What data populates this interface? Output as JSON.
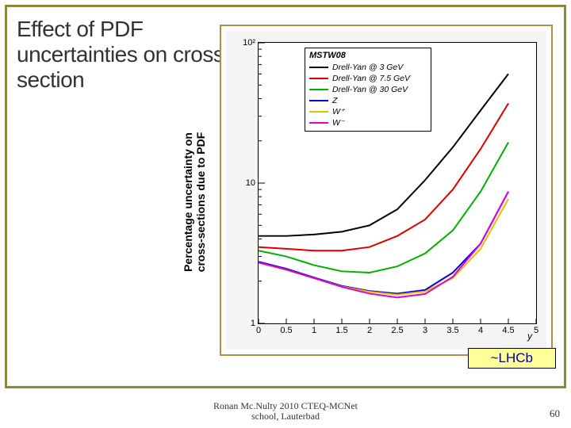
{
  "title": "Effect of PDF uncertainties on cross-section",
  "ylabel_line1": "Percentage uncertainty on",
  "ylabel_line2": "cross-sections due to PDF",
  "chart": {
    "type": "line",
    "xlim": [
      0,
      5
    ],
    "ylim": [
      1,
      100
    ],
    "yscale": "log",
    "xticks": [
      0,
      0.5,
      1,
      1.5,
      2,
      2.5,
      3,
      3.5,
      4,
      4.5,
      5
    ],
    "yticks_major": [
      1,
      10,
      100
    ],
    "ytick_labels": [
      "1",
      "10",
      "10²"
    ],
    "xlabel": "y",
    "background_color": "#f4f4f4",
    "plot_bg": "#ffffff",
    "border_color": "#b09040",
    "grid_color": "#ffffff",
    "legend": {
      "title": "MSTW08",
      "items": [
        {
          "label": "Drell-Yan @ 3 GeV",
          "color": "#000000"
        },
        {
          "label": "Drell-Yan @ 7.5 GeV",
          "color": "#e00000"
        },
        {
          "label": "Drell-Yan @ 30 GeV",
          "color": "#00b000"
        },
        {
          "label": "Z",
          "color": "#0000e0"
        },
        {
          "label": "W⁺",
          "color": "#e0c000"
        },
        {
          "label": "W⁻",
          "color": "#e000d0"
        }
      ]
    },
    "series": [
      {
        "name": "dy3",
        "color": "#000000",
        "width": 2,
        "points": [
          [
            0,
            4.2
          ],
          [
            0.5,
            4.2
          ],
          [
            1.0,
            4.3
          ],
          [
            1.5,
            4.5
          ],
          [
            2.0,
            5.0
          ],
          [
            2.5,
            6.5
          ],
          [
            3.0,
            10.5
          ],
          [
            3.5,
            18
          ],
          [
            4.0,
            33
          ],
          [
            4.5,
            60
          ]
        ]
      },
      {
        "name": "dy7",
        "color": "#e00000",
        "width": 2,
        "points": [
          [
            0,
            3.5
          ],
          [
            0.5,
            3.4
          ],
          [
            1.0,
            3.3
          ],
          [
            1.5,
            3.3
          ],
          [
            2.0,
            3.5
          ],
          [
            2.5,
            4.2
          ],
          [
            3.0,
            5.5
          ],
          [
            3.5,
            9.0
          ],
          [
            4.0,
            17.5
          ],
          [
            4.5,
            37
          ]
        ]
      },
      {
        "name": "dy30",
        "color": "#00b000",
        "width": 2,
        "points": [
          [
            0,
            3.3
          ],
          [
            0.5,
            3.0
          ],
          [
            1.0,
            2.6
          ],
          [
            1.5,
            2.35
          ],
          [
            2.0,
            2.3
          ],
          [
            2.5,
            2.55
          ],
          [
            3.0,
            3.15
          ],
          [
            3.5,
            4.6
          ],
          [
            4.0,
            8.7
          ],
          [
            4.5,
            19.5
          ]
        ]
      },
      {
        "name": "z",
        "color": "#0000e0",
        "width": 2,
        "points": [
          [
            0,
            2.75
          ],
          [
            0.5,
            2.45
          ],
          [
            1.0,
            2.12
          ],
          [
            1.5,
            1.85
          ],
          [
            2.0,
            1.7
          ],
          [
            2.5,
            1.63
          ],
          [
            3.0,
            1.73
          ],
          [
            3.5,
            2.3
          ],
          [
            4.0,
            3.7
          ],
          [
            4.5,
            8.7
          ]
        ]
      },
      {
        "name": "wplus",
        "color": "#e0c000",
        "width": 2,
        "points": [
          [
            0,
            2.7
          ],
          [
            0.5,
            2.4
          ],
          [
            1.0,
            2.1
          ],
          [
            1.5,
            1.83
          ],
          [
            2.0,
            1.68
          ],
          [
            2.5,
            1.6
          ],
          [
            3.0,
            1.69
          ],
          [
            3.5,
            2.1
          ],
          [
            4.0,
            3.4
          ],
          [
            4.5,
            7.7
          ]
        ]
      },
      {
        "name": "wminus",
        "color": "#e000d0",
        "width": 2,
        "points": [
          [
            0,
            2.72
          ],
          [
            0.5,
            2.42
          ],
          [
            1.0,
            2.1
          ],
          [
            1.5,
            1.82
          ],
          [
            2.0,
            1.63
          ],
          [
            2.5,
            1.53
          ],
          [
            3.0,
            1.62
          ],
          [
            3.5,
            2.15
          ],
          [
            4.0,
            3.7
          ],
          [
            4.5,
            8.7
          ]
        ]
      }
    ]
  },
  "lhcb_box": "~LHCb",
  "footer": {
    "line1": "Ronan Mc.Nulty  2010 CTEQ-MCNet",
    "line2": "school, Lauterbad",
    "page": "60"
  }
}
